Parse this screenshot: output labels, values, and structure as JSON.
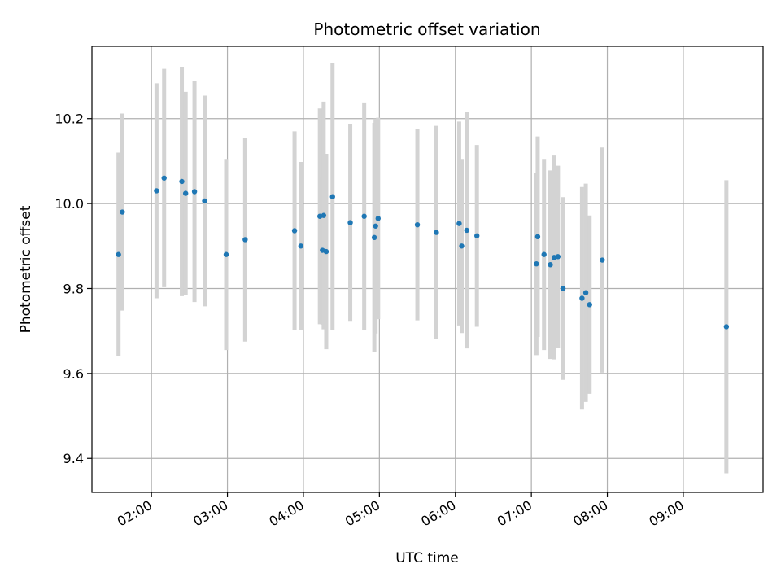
{
  "chart_data": {
    "type": "scatter",
    "title": "Photometric offset variation",
    "xlabel": "UTC time",
    "ylabel": "Photometric offset",
    "xlim": [
      "01:13",
      "10:03"
    ],
    "ylim": [
      9.32,
      10.37
    ],
    "x_ticks": [
      "02:00",
      "03:00",
      "04:00",
      "05:00",
      "06:00",
      "07:00",
      "08:00",
      "09:00"
    ],
    "y_ticks": [
      9.4,
      9.6,
      9.8,
      10.0,
      10.2
    ],
    "grid": true,
    "colors": {
      "marker": "#1f77b4",
      "errorbar": "#d3d3d3",
      "grid": "#b0b0b0"
    },
    "series": [
      {
        "points": [
          {
            "x": "01:34",
            "y": 9.88,
            "err": 0.24
          },
          {
            "x": "01:37",
            "y": 9.98,
            "err": 0.232
          },
          {
            "x": "02:04",
            "y": 10.03,
            "err": 0.253
          },
          {
            "x": "02:10",
            "y": 10.06,
            "err": 0.257
          },
          {
            "x": "02:24",
            "y": 10.052,
            "err": 0.27
          },
          {
            "x": "02:27",
            "y": 10.024,
            "err": 0.239
          },
          {
            "x": "02:34",
            "y": 10.028,
            "err": 0.26
          },
          {
            "x": "02:42",
            "y": 10.006,
            "err": 0.248
          },
          {
            "x": "02:59",
            "y": 9.88,
            "err": 0.225
          },
          {
            "x": "03:14",
            "y": 9.915,
            "err": 0.24
          },
          {
            "x": "03:53",
            "y": 9.936,
            "err": 0.234
          },
          {
            "x": "03:58",
            "y": 9.9,
            "err": 0.198
          },
          {
            "x": "04:13",
            "y": 9.97,
            "err": 0.254
          },
          {
            "x": "04:15",
            "y": 9.89,
            "err": 0.175
          },
          {
            "x": "04:16",
            "y": 9.972,
            "err": 0.268
          },
          {
            "x": "04:18",
            "y": 9.887,
            "err": 0.23
          },
          {
            "x": "04:23",
            "y": 10.016,
            "err": 0.314
          },
          {
            "x": "04:37",
            "y": 9.955,
            "err": 0.233
          },
          {
            "x": "04:48",
            "y": 9.97,
            "err": 0.268
          },
          {
            "x": "04:56",
            "y": 9.92,
            "err": 0.27
          },
          {
            "x": "04:57",
            "y": 9.947,
            "err": 0.253
          },
          {
            "x": "04:59",
            "y": 9.965,
            "err": 0.237
          },
          {
            "x": "05:30",
            "y": 9.95,
            "err": 0.225
          },
          {
            "x": "05:45",
            "y": 9.932,
            "err": 0.251
          },
          {
            "x": "06:03",
            "y": 9.953,
            "err": 0.24
          },
          {
            "x": "06:05",
            "y": 9.9,
            "err": 0.205
          },
          {
            "x": "06:09",
            "y": 9.937,
            "err": 0.278
          },
          {
            "x": "06:17",
            "y": 9.924,
            "err": 0.214
          },
          {
            "x": "07:04",
            "y": 9.858,
            "err": 0.215
          },
          {
            "x": "07:05",
            "y": 9.922,
            "err": 0.236
          },
          {
            "x": "07:10",
            "y": 9.88,
            "err": 0.225
          },
          {
            "x": "07:15",
            "y": 9.856,
            "err": 0.222
          },
          {
            "x": "07:18",
            "y": 9.873,
            "err": 0.24
          },
          {
            "x": "07:21",
            "y": 9.875,
            "err": 0.214
          },
          {
            "x": "07:25",
            "y": 9.8,
            "err": 0.215
          },
          {
            "x": "07:40",
            "y": 9.777,
            "err": 0.262
          },
          {
            "x": "07:43",
            "y": 9.79,
            "err": 0.257
          },
          {
            "x": "07:46",
            "y": 9.762,
            "err": 0.21
          },
          {
            "x": "07:56",
            "y": 9.867,
            "err": 0.265
          },
          {
            "x": "09:34",
            "y": 9.71,
            "err": 0.345
          }
        ]
      }
    ]
  }
}
